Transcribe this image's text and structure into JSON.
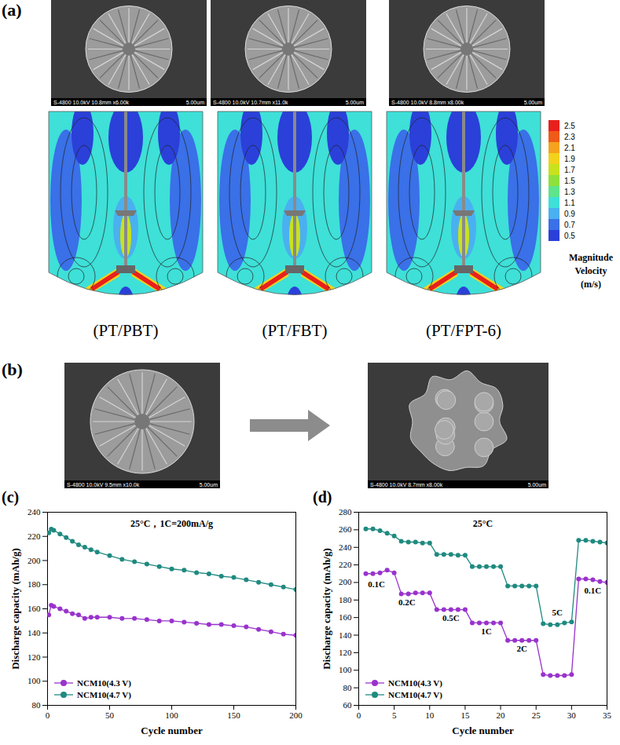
{
  "panels": {
    "a": {
      "letter": "(a)",
      "sem_images": [
        {
          "info": "S-4800 10.0kV 10.8mm x6.00k",
          "scale": "5.00um"
        },
        {
          "info": "S-4800 10.0kV 10.7mm x11.0k",
          "scale": "5.00um"
        },
        {
          "info": "S-4800 10.0kV 8.8mm x8.00k",
          "scale": "5.00um"
        }
      ],
      "flow_fields": [
        "(PT/PBT)",
        "(PT/FBT)",
        "(PT/FPT-6)"
      ],
      "colorbar": {
        "title": "Magnitude Velocity (m/s)",
        "range": [
          0.5,
          2.5
        ],
        "ticks": [
          2.5,
          2.3,
          2.1,
          1.9,
          1.7,
          1.5,
          1.3,
          1.1,
          0.9,
          0.7,
          0.5
        ],
        "colors": [
          "#e8201c",
          "#f05a18",
          "#f5a21e",
          "#f2d21c",
          "#c8e21e",
          "#8ee03a",
          "#5ee48a",
          "#3ee0d8",
          "#4ab0f0",
          "#3a70e8",
          "#2a40d8"
        ]
      }
    },
    "b": {
      "letter": "(b)",
      "sem_images": [
        {
          "info": "S-4800 10.0kV 9.5mm x10.0k",
          "scale": "5.00um"
        },
        {
          "info": "S-4800 10.0kV 8.7mm x8.00k",
          "scale": "5.00um"
        }
      ]
    }
  },
  "chart_data": [
    {
      "type": "line",
      "panel_label": "(c)",
      "title": "25°C，1C=200mA/g",
      "x_label": "Cycle number",
      "y_label": "Discharge capacity (mAh/g)",
      "xlim": [
        0,
        200
      ],
      "xticks": [
        0,
        50,
        100,
        150,
        200
      ],
      "ylim": [
        80,
        240
      ],
      "yticks": [
        80,
        100,
        120,
        140,
        160,
        180,
        200,
        220,
        240
      ],
      "legend": "lower left",
      "marker": "circle",
      "x": [
        1,
        3,
        5,
        10,
        15,
        20,
        25,
        30,
        35,
        40,
        50,
        60,
        70,
        80,
        90,
        100,
        110,
        120,
        130,
        140,
        150,
        160,
        170,
        180,
        190,
        200
      ],
      "series": [
        {
          "name": "NCM10(4.3 V)",
          "color": "#9933cc",
          "values": [
            155,
            163,
            162,
            160,
            158,
            156,
            155,
            152,
            153,
            153,
            153,
            152,
            152,
            151,
            150,
            150,
            149,
            148,
            147,
            147,
            146,
            145,
            143,
            141,
            139,
            138
          ]
        },
        {
          "name": "NCM10(4.7 V)",
          "color": "#1f8a80",
          "values": [
            223,
            226,
            225,
            222,
            219,
            216,
            213,
            211,
            209,
            207,
            204,
            201,
            199,
            197,
            195,
            193,
            192,
            190,
            189,
            187,
            186,
            184,
            182,
            180,
            178,
            176
          ]
        }
      ]
    },
    {
      "type": "line",
      "panel_label": "(d)",
      "title": "25°C",
      "x_label": "Cycle number",
      "y_label": "Discharge capacity (mAh/g)",
      "xlim": [
        0,
        35
      ],
      "xticks": [
        0,
        5,
        10,
        15,
        20,
        25,
        30,
        35
      ],
      "ylim": [
        60,
        280
      ],
      "yticks": [
        60,
        80,
        100,
        120,
        140,
        160,
        180,
        200,
        220,
        240,
        260,
        280
      ],
      "legend": "lower left",
      "marker": "circle",
      "x": [
        1,
        2,
        3,
        4,
        5,
        6,
        7,
        8,
        9,
        10,
        11,
        12,
        13,
        14,
        15,
        16,
        17,
        18,
        19,
        20,
        21,
        22,
        23,
        24,
        25,
        26,
        27,
        28,
        29,
        30,
        31,
        32,
        33,
        34,
        35
      ],
      "series": [
        {
          "name": "NCM10(4.3 V)",
          "color": "#9933cc",
          "values": [
            210,
            210,
            211,
            214,
            211,
            187,
            187,
            188,
            188,
            188,
            169,
            169,
            169,
            169,
            169,
            154,
            154,
            154,
            154,
            154,
            134,
            134,
            134,
            134,
            134,
            95,
            94,
            94,
            94,
            95,
            204,
            204,
            203,
            201,
            200
          ]
        },
        {
          "name": "NCM10(4.7 V)",
          "color": "#1f8a80",
          "values": [
            261,
            261,
            259,
            256,
            253,
            247,
            246,
            246,
            245,
            245,
            232,
            232,
            232,
            231,
            231,
            218,
            218,
            218,
            218,
            218,
            196,
            196,
            196,
            196,
            196,
            153,
            152,
            152,
            154,
            155,
            248,
            248,
            247,
            246,
            245
          ]
        }
      ],
      "annotations": [
        {
          "text": "0.1C",
          "x": 2.5,
          "y": 198
        },
        {
          "text": "0.2C",
          "x": 6.8,
          "y": 177
        },
        {
          "text": "0.5C",
          "x": 13,
          "y": 159
        },
        {
          "text": "1C",
          "x": 18,
          "y": 144
        },
        {
          "text": "2C",
          "x": 23,
          "y": 124
        },
        {
          "text": "5C",
          "x": 28,
          "y": 166
        },
        {
          "text": "0.1C",
          "x": 33,
          "y": 191
        }
      ]
    }
  ]
}
